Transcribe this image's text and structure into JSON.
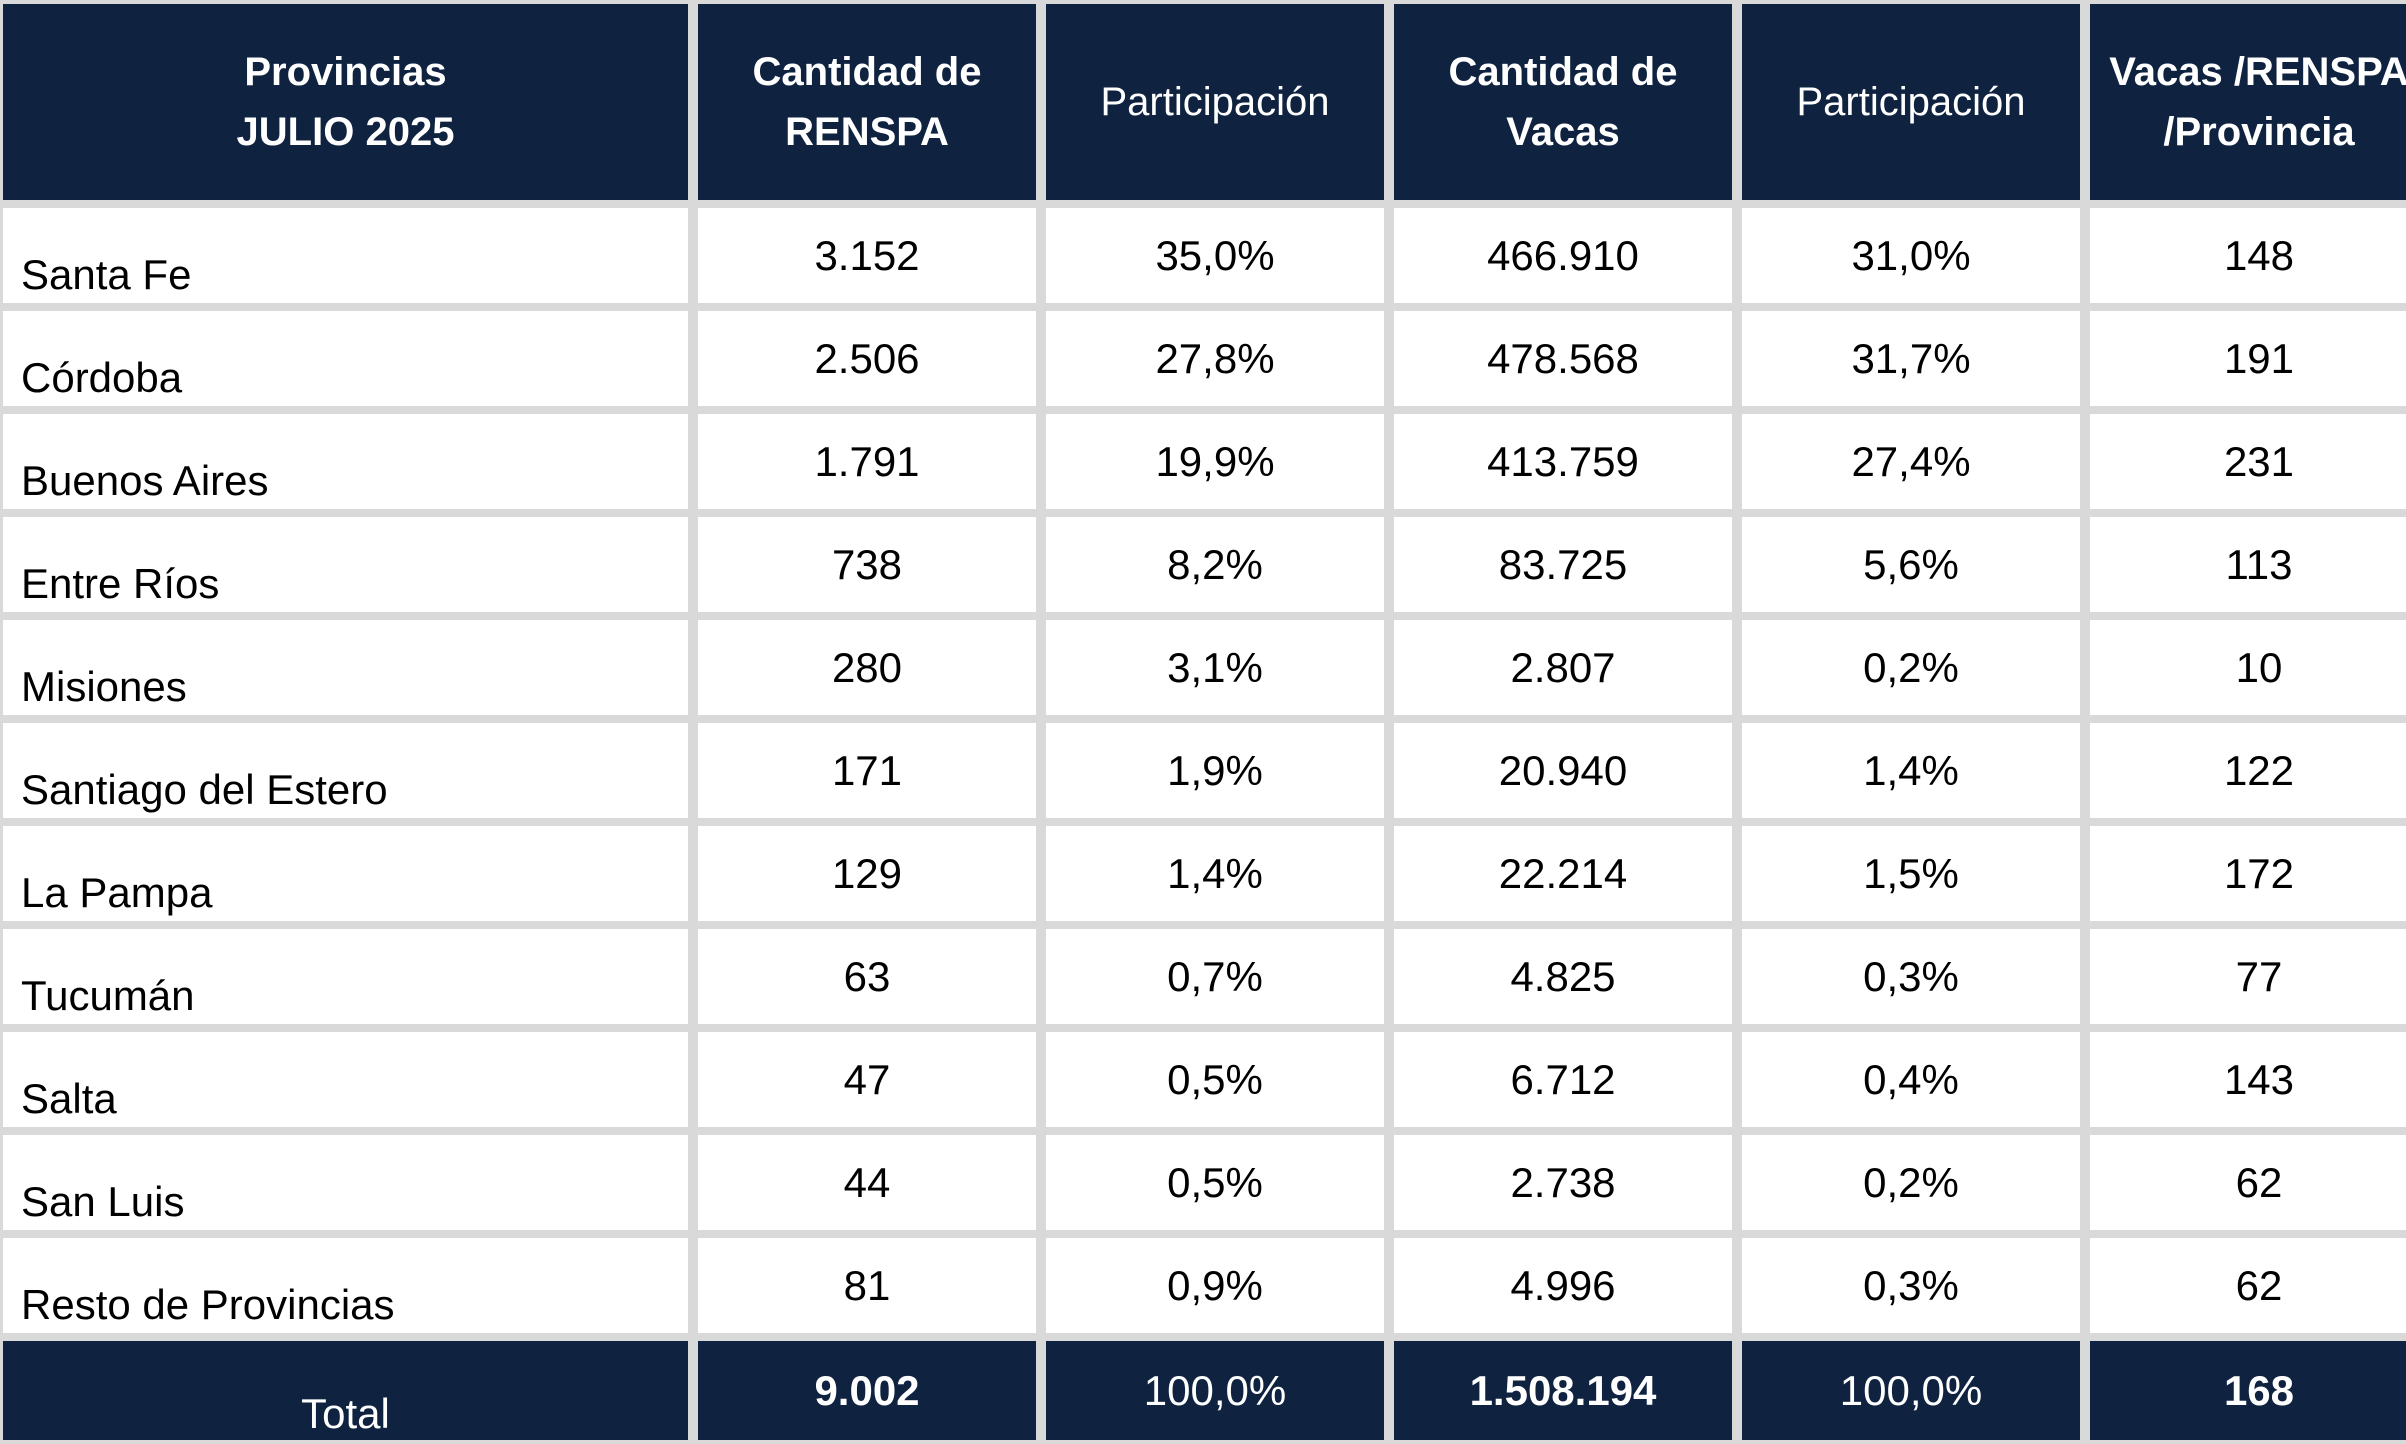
{
  "headers": [
    {
      "label": "Provincias\nJULIO 2025",
      "bold": true
    },
    {
      "label": "Cantidad de\nRENSPA",
      "bold": true
    },
    {
      "label": "Participación",
      "bold": false
    },
    {
      "label": "Cantidad de\nVacas",
      "bold": true
    },
    {
      "label": "Participación",
      "bold": false
    },
    {
      "label": "Vacas /RENSPA\n/Provincia",
      "bold": true
    }
  ],
  "rows": [
    {
      "provincia": "Santa Fe",
      "renspa": "3.152",
      "part_renspa": "35,0%",
      "vacas": "466.910",
      "part_vacas": "31,0%",
      "ratio": "148"
    },
    {
      "provincia": "Córdoba",
      "renspa": "2.506",
      "part_renspa": "27,8%",
      "vacas": "478.568",
      "part_vacas": "31,7%",
      "ratio": "191"
    },
    {
      "provincia": "Buenos Aires",
      "renspa": "1.791",
      "part_renspa": "19,9%",
      "vacas": "413.759",
      "part_vacas": "27,4%",
      "ratio": "231"
    },
    {
      "provincia": "Entre Ríos",
      "renspa": "738",
      "part_renspa": "8,2%",
      "vacas": "83.725",
      "part_vacas": "5,6%",
      "ratio": "113"
    },
    {
      "provincia": "Misiones",
      "renspa": "280",
      "part_renspa": "3,1%",
      "vacas": "2.807",
      "part_vacas": "0,2%",
      "ratio": "10"
    },
    {
      "provincia": "Santiago del Estero",
      "renspa": "171",
      "part_renspa": "1,9%",
      "vacas": "20.940",
      "part_vacas": "1,4%",
      "ratio": "122"
    },
    {
      "provincia": "La Pampa",
      "renspa": "129",
      "part_renspa": "1,4%",
      "vacas": "22.214",
      "part_vacas": "1,5%",
      "ratio": "172"
    },
    {
      "provincia": "Tucumán",
      "renspa": "63",
      "part_renspa": "0,7%",
      "vacas": "4.825",
      "part_vacas": "0,3%",
      "ratio": "77"
    },
    {
      "provincia": "Salta",
      "renspa": "47",
      "part_renspa": "0,5%",
      "vacas": "6.712",
      "part_vacas": "0,4%",
      "ratio": "143"
    },
    {
      "provincia": "San Luis",
      "renspa": "44",
      "part_renspa": "0,5%",
      "vacas": "2.738",
      "part_vacas": "0,2%",
      "ratio": "62"
    },
    {
      "provincia": "Resto de Provincias",
      "renspa": "81",
      "part_renspa": "0,9%",
      "vacas": "4.996",
      "part_vacas": "0,3%",
      "ratio": "62"
    }
  ],
  "total": {
    "provincia": "Total",
    "renspa": "9.002",
    "part_renspa": "100,0%",
    "vacas": "1.508.194",
    "part_vacas": "100,0%",
    "ratio": "168"
  },
  "colors": {
    "header_bg": "#0f2341",
    "cell_bg": "#ffffff",
    "grid": "#d9d9d9"
  }
}
